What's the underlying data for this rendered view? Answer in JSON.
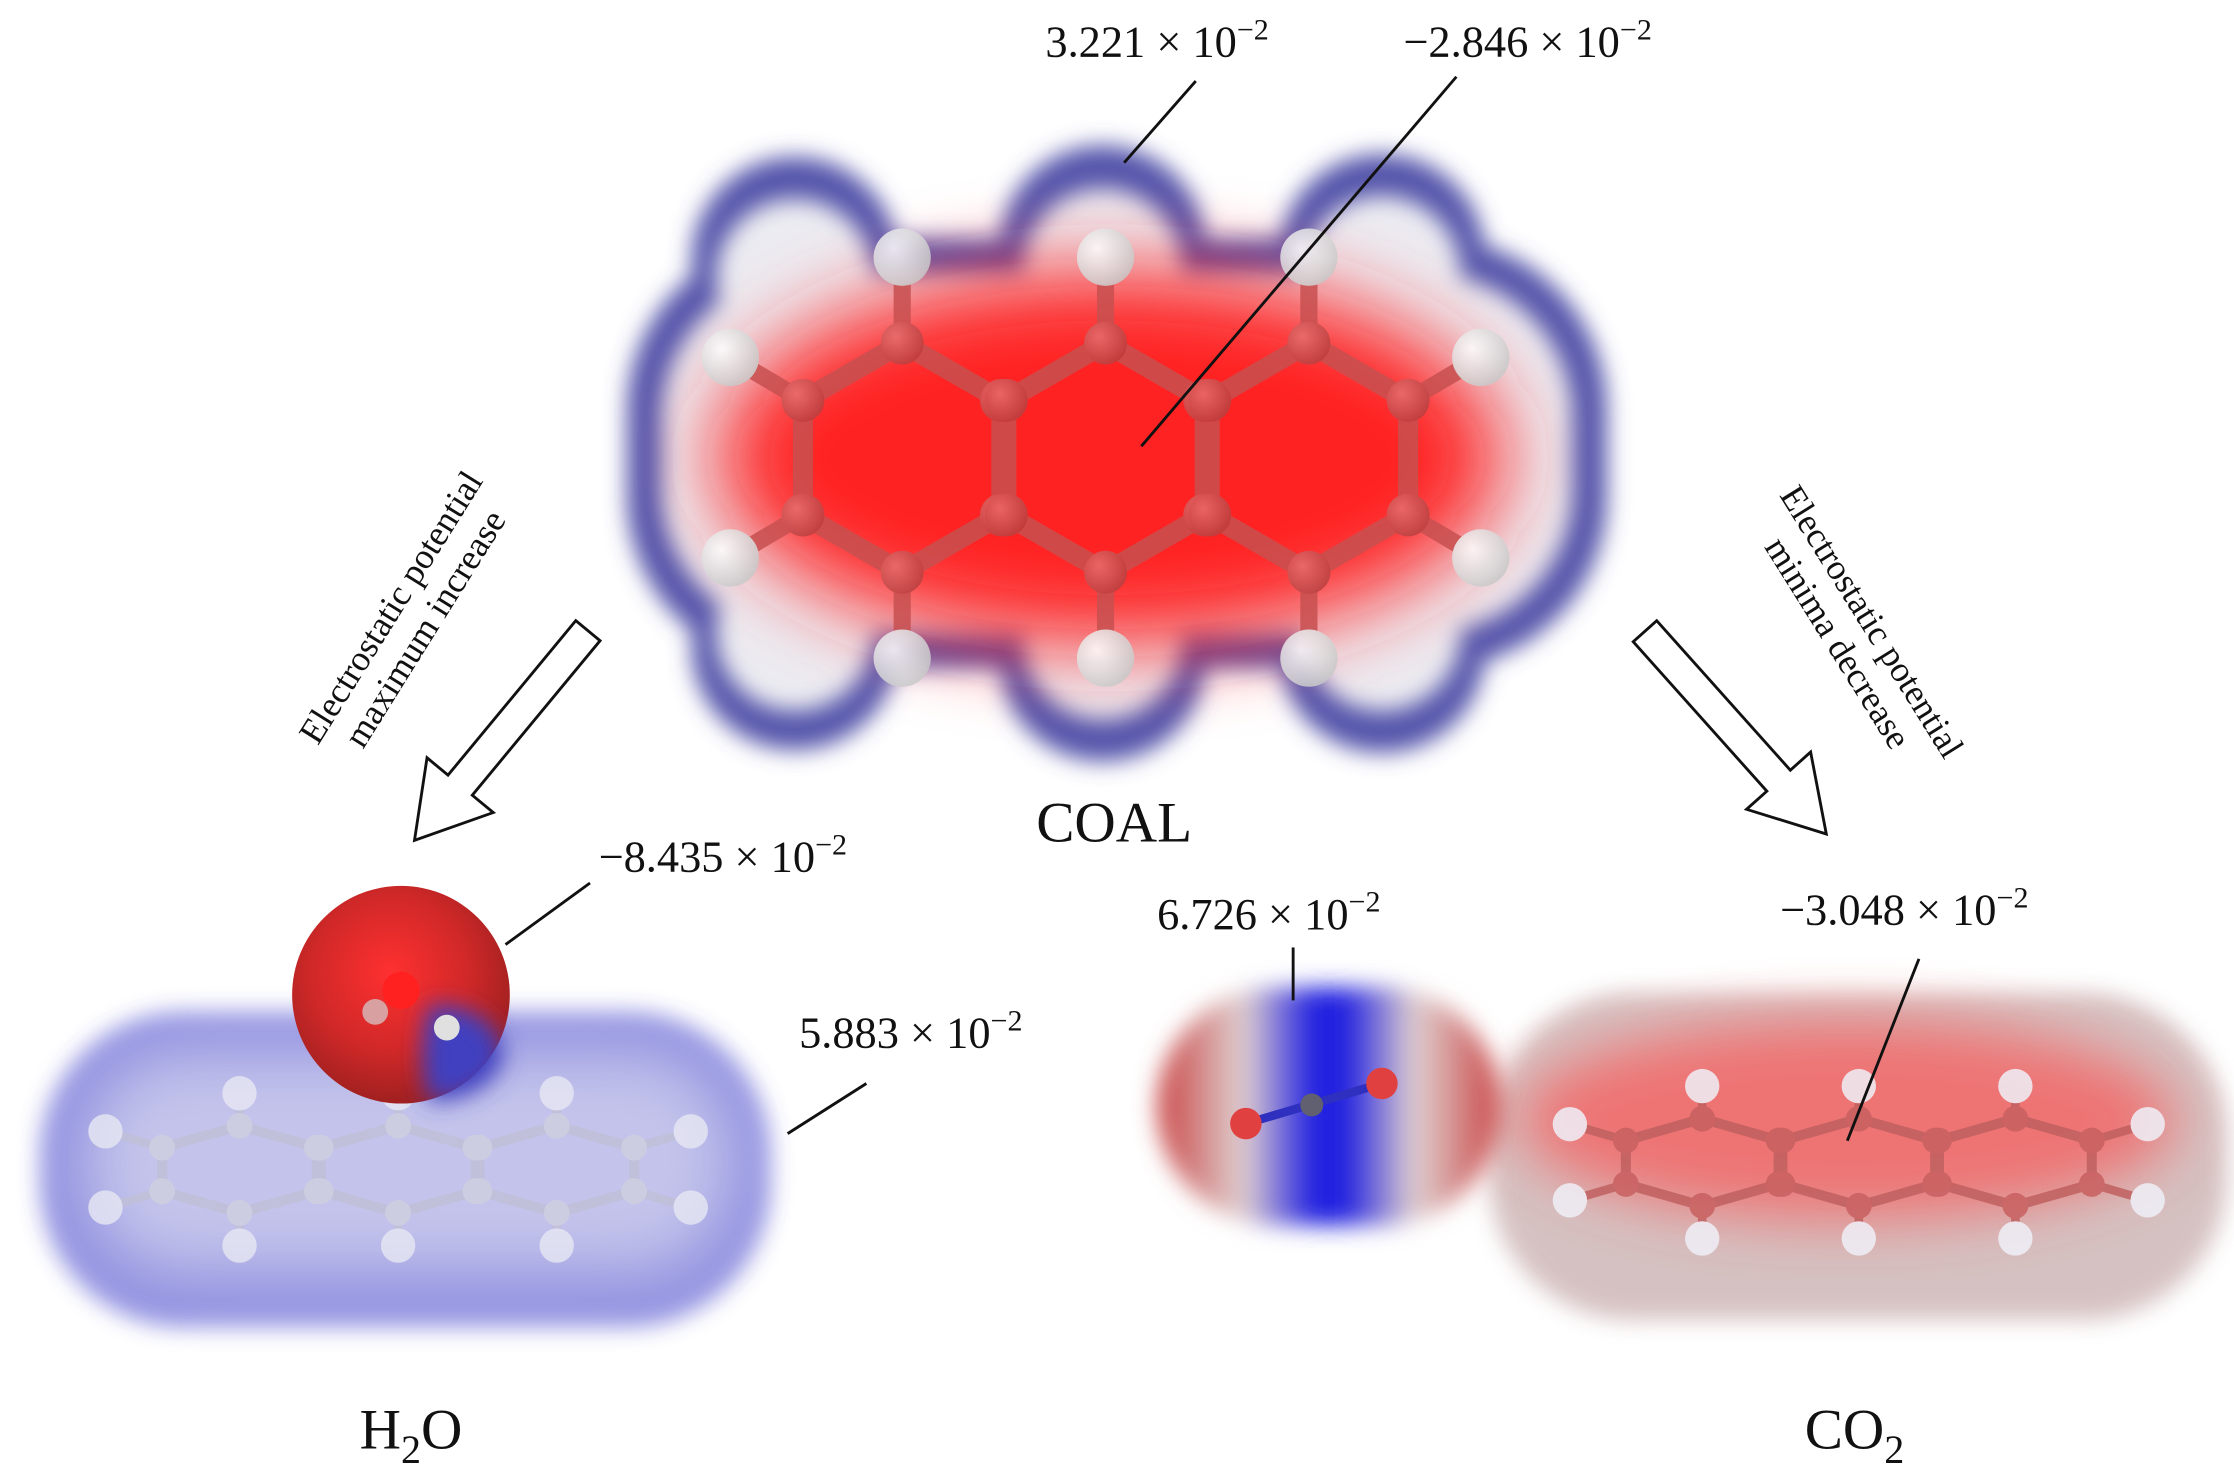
{
  "annotations": [
    {
      "text": "3.221 × 10",
      "exponent": "−2"
    },
    {
      "text": "−2.846 × 10",
      "exponent": "−2"
    },
    {
      "text": "−8.435 × 10",
      "exponent": "−2"
    },
    {
      "text": "5.883 × 10",
      "exponent": "−2"
    },
    {
      "text": "6.726 × 10",
      "exponent": "−2"
    },
    {
      "text": "−3.048 × 10",
      "exponent": "−2"
    }
  ],
  "labels": {
    "coal": "COAL",
    "water": {
      "main": "H",
      "sub": "2",
      "tail": "O"
    },
    "co2": {
      "main": "CO",
      "sub": "2"
    }
  },
  "arrows": {
    "left": [
      "Electrostatic potential",
      "maximum increase"
    ],
    "right": [
      "Electrostatic potential",
      "minima decrease"
    ]
  }
}
